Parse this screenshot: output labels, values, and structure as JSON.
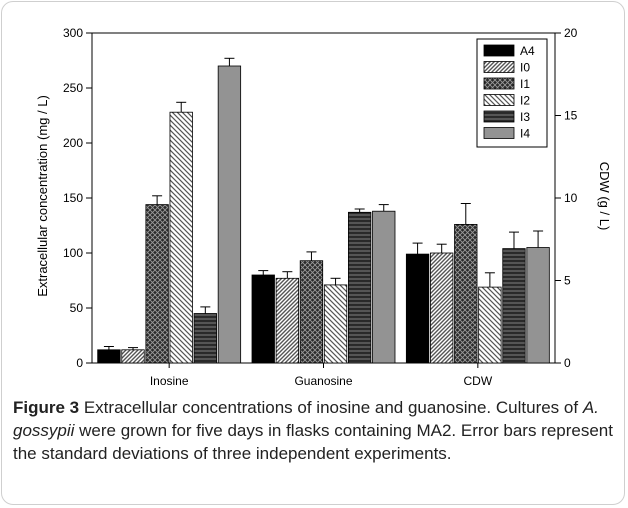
{
  "chart_data": {
    "type": "bar",
    "categories": [
      "Inosine",
      "Guanosine",
      "CDW"
    ],
    "ylabel": "Extracellular concentration (mg / L)",
    "y2label": "CDW (g / L)",
    "ylim": [
      0,
      300
    ],
    "y2lim": [
      0,
      20
    ],
    "yticks": [
      0,
      50,
      100,
      150,
      200,
      250,
      300
    ],
    "y2ticks": [
      0,
      5,
      10,
      15,
      20
    ],
    "legend_position": "top-right",
    "grid": false,
    "series": [
      {
        "name": "A4",
        "values": [
          12,
          80,
          99
        ],
        "errors": [
          3,
          4,
          10
        ],
        "fill": "#000000",
        "pattern": "solid"
      },
      {
        "name": "I0",
        "values": [
          12,
          77,
          100
        ],
        "errors": [
          2,
          6,
          8
        ],
        "fill": "#8c8c8c",
        "pattern": "hatch-right"
      },
      {
        "name": "I1",
        "values": [
          144,
          93,
          126
        ],
        "errors": [
          8,
          8,
          19
        ],
        "fill": "#4a4a4a",
        "pattern": "crosshatch"
      },
      {
        "name": "I2",
        "values": [
          228,
          71,
          69
        ],
        "errors": [
          9,
          6,
          13
        ],
        "fill": "#ffffff",
        "pattern": "hatch-left"
      },
      {
        "name": "I3",
        "values": [
          45,
          137,
          104
        ],
        "errors": [
          6,
          3,
          15
        ],
        "fill": "#3c3c3c",
        "pattern": "hlines"
      },
      {
        "name": "I4",
        "values": [
          270,
          138,
          105
        ],
        "errors": [
          7,
          6,
          15
        ],
        "fill": "#939393",
        "pattern": "solid"
      }
    ]
  },
  "caption": {
    "label": "Figure 3",
    "text1": " Extracellular concentrations of inosine and guanosine. Cultures of ",
    "species": "A. gossypii",
    "text2": " were grown for five days in flasks containing MA2. Error bars represent the standard deviations of three independent experiments."
  }
}
